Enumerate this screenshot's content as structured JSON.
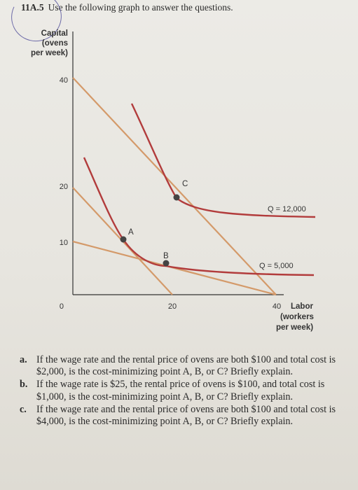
{
  "header": {
    "number": "11A.5",
    "instruction": "Use the following graph to answer the questions."
  },
  "graph": {
    "y_axis_label": [
      "Capital",
      "(ovens",
      "per week)"
    ],
    "x_axis_label": [
      "Labor",
      "(workers",
      "per week)"
    ],
    "y_ticks": [
      "40",
      "20",
      "10",
      "0"
    ],
    "x_ticks": [
      "20",
      "40"
    ],
    "points": [
      "A",
      "B",
      "C"
    ],
    "isoquant_labels": [
      "Q = 12,000",
      "Q = 5,000"
    ],
    "colors": {
      "isocost": "#d49a6a",
      "isoquant": "#b23c3c",
      "point": "#444444"
    }
  },
  "questions": [
    {
      "label": "a.",
      "text": "If the wage rate and the rental price of ovens are both $100 and total cost is $2,000, is the cost-minimizing point A, B, or C? Briefly explain."
    },
    {
      "label": "b.",
      "text": "If the wage rate is $25, the rental price of ovens is $100, and total cost is $1,000, is the cost-minimizing point A, B, or C? Briefly explain."
    },
    {
      "label": "c.",
      "text": "If the wage rate and the rental price of ovens are both $100 and total cost is $4,000, is the cost-minimizing point A, B, or C? Briefly explain."
    }
  ]
}
